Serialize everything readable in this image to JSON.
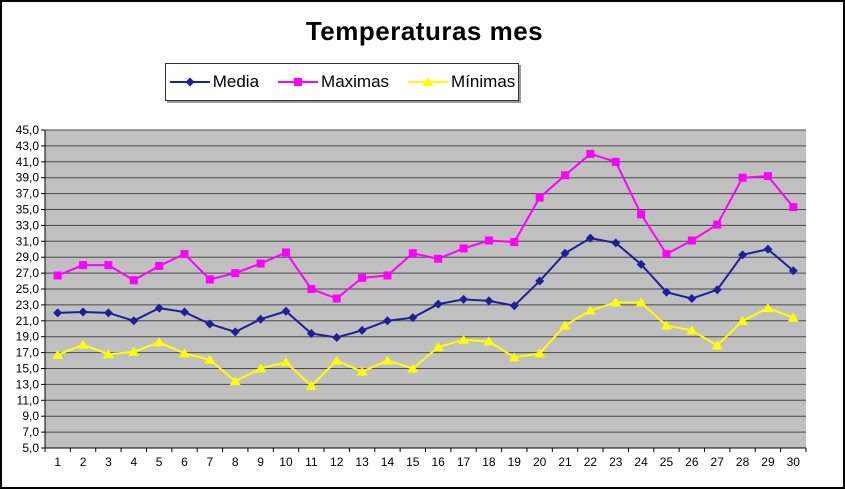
{
  "chart_data": {
    "type": "line",
    "title": "Temperaturas mes",
    "xlabel": "",
    "ylabel": "",
    "x": [
      1,
      2,
      3,
      4,
      5,
      6,
      7,
      8,
      9,
      10,
      11,
      12,
      13,
      14,
      15,
      16,
      17,
      18,
      19,
      20,
      21,
      22,
      23,
      24,
      25,
      26,
      27,
      28,
      29,
      30
    ],
    "ylim": [
      5,
      45
    ],
    "ytick_step": 2,
    "ytick_labels_top_to_bottom": [
      "45,0",
      "43,0",
      "41,0",
      "39,0",
      "37,0",
      "35,0",
      "33,0",
      "31,0",
      "29,0",
      "27,0",
      "25,0",
      "23,0",
      "21,0",
      "19,0",
      "17,0",
      "15,0",
      "13,0",
      "11,0",
      "9,0",
      "7,0",
      "5,0"
    ],
    "grid": "horizontal",
    "legend_position": "top-center",
    "plot_bg": "#C0C0C0",
    "gridline_color": "#4A4A4A",
    "axis_color": "#000000",
    "text_color": "#000000",
    "series": [
      {
        "name": "Media",
        "color": "#1F1F99",
        "marker": "diamond",
        "values": [
          22.0,
          22.1,
          22.0,
          21.0,
          22.6,
          22.1,
          20.6,
          19.6,
          21.2,
          22.2,
          19.4,
          18.9,
          19.8,
          21.0,
          21.4,
          23.1,
          23.7,
          23.5,
          22.9,
          26.0,
          29.5,
          31.4,
          30.8,
          28.1,
          24.6,
          23.8,
          24.9,
          29.3,
          30.0,
          27.3
        ]
      },
      {
        "name": "Maximas",
        "color": "#FF00FF",
        "marker": "square",
        "values": [
          26.7,
          28.0,
          28.0,
          26.1,
          27.9,
          29.4,
          26.2,
          27.0,
          28.2,
          29.6,
          25.0,
          23.8,
          26.4,
          26.7,
          29.5,
          28.8,
          30.1,
          31.1,
          30.9,
          36.5,
          39.3,
          42.0,
          41.0,
          34.4,
          29.4,
          31.1,
          33.1,
          39.0,
          39.2,
          35.3
        ]
      },
      {
        "name": "Mínimas",
        "color": "#FFFF00",
        "marker": "triangle",
        "values": [
          16.7,
          18.0,
          16.8,
          17.1,
          18.3,
          16.9,
          16.1,
          13.4,
          15.0,
          15.8,
          12.8,
          16.0,
          14.6,
          16.0,
          15.0,
          17.7,
          18.6,
          18.4,
          16.4,
          16.9,
          20.4,
          22.3,
          23.3,
          23.3,
          20.4,
          19.8,
          17.9,
          21.0,
          22.6,
          21.4
        ]
      }
    ]
  }
}
